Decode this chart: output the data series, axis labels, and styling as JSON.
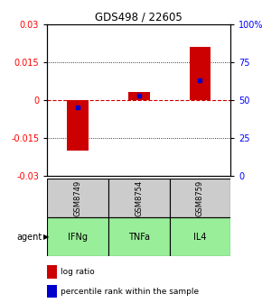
{
  "title": "GDS498 / 22605",
  "samples": [
    "GSM8749",
    "GSM8754",
    "GSM8759"
  ],
  "agents": [
    "IFNg",
    "TNFa",
    "IL4"
  ],
  "log_ratios": [
    -0.02,
    0.003,
    0.021
  ],
  "percentile_ranks": [
    45.0,
    53.0,
    63.0
  ],
  "ylim_left": [
    -0.03,
    0.03
  ],
  "ylim_right": [
    0,
    100
  ],
  "yticks_left": [
    -0.03,
    -0.015,
    0,
    0.015,
    0.03
  ],
  "yticks_right": [
    0,
    25,
    50,
    75,
    100
  ],
  "bar_color": "#cc0000",
  "dot_color": "#0000cc",
  "zero_line_color": "#cc0000",
  "sample_bg": "#cccccc",
  "agent_bg": "#99ee99",
  "bar_width": 0.35,
  "agent_label": "agent"
}
